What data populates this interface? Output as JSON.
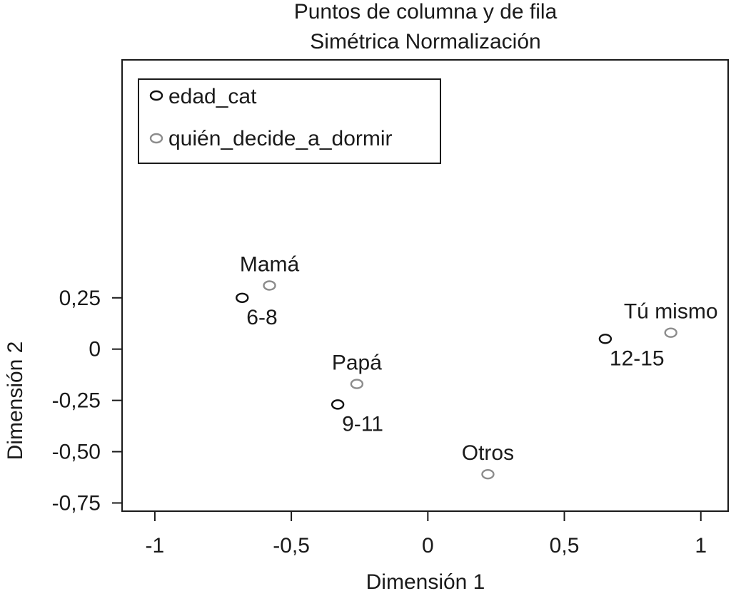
{
  "chart_data": {
    "type": "scatter",
    "title": "Puntos de columna y de fila",
    "subtitle": "Simétrica Normalización",
    "xlabel": "Dimensión 1",
    "ylabel": "Dimensión 2",
    "xlim": [
      -1.12,
      1.1
    ],
    "ylim": [
      -0.79,
      1.41
    ],
    "x_ticks": [
      -1,
      -0.5,
      0,
      0.5,
      1
    ],
    "x_tick_labels": [
      "-1",
      "-0,5",
      "0",
      "0,5",
      "1"
    ],
    "y_ticks": [
      0.25,
      0,
      -0.25,
      -0.5,
      -0.75
    ],
    "y_tick_labels": [
      "0,25",
      "0",
      "-0,25",
      "-0,50",
      "-0,75"
    ],
    "grid": false,
    "legend_position": "top-left",
    "series": [
      {
        "name": "edad_cat",
        "color": "#111111",
        "marker": "open-ellipse",
        "points": [
          {
            "label": "6-8",
            "x": -0.68,
            "y": 0.25
          },
          {
            "label": "9-11",
            "x": -0.33,
            "y": -0.27
          },
          {
            "label": "12-15",
            "x": 0.65,
            "y": 0.05
          }
        ]
      },
      {
        "name": "quién_decide_a_dormir",
        "color": "#8c8c8c",
        "marker": "open-ellipse",
        "points": [
          {
            "label": "Mamá",
            "x": -0.58,
            "y": 0.31
          },
          {
            "label": "Papá",
            "x": -0.26,
            "y": -0.17
          },
          {
            "label": "Otros",
            "x": 0.22,
            "y": -0.61
          },
          {
            "label": "Tú mismo",
            "x": 0.89,
            "y": 0.08
          }
        ]
      }
    ]
  }
}
